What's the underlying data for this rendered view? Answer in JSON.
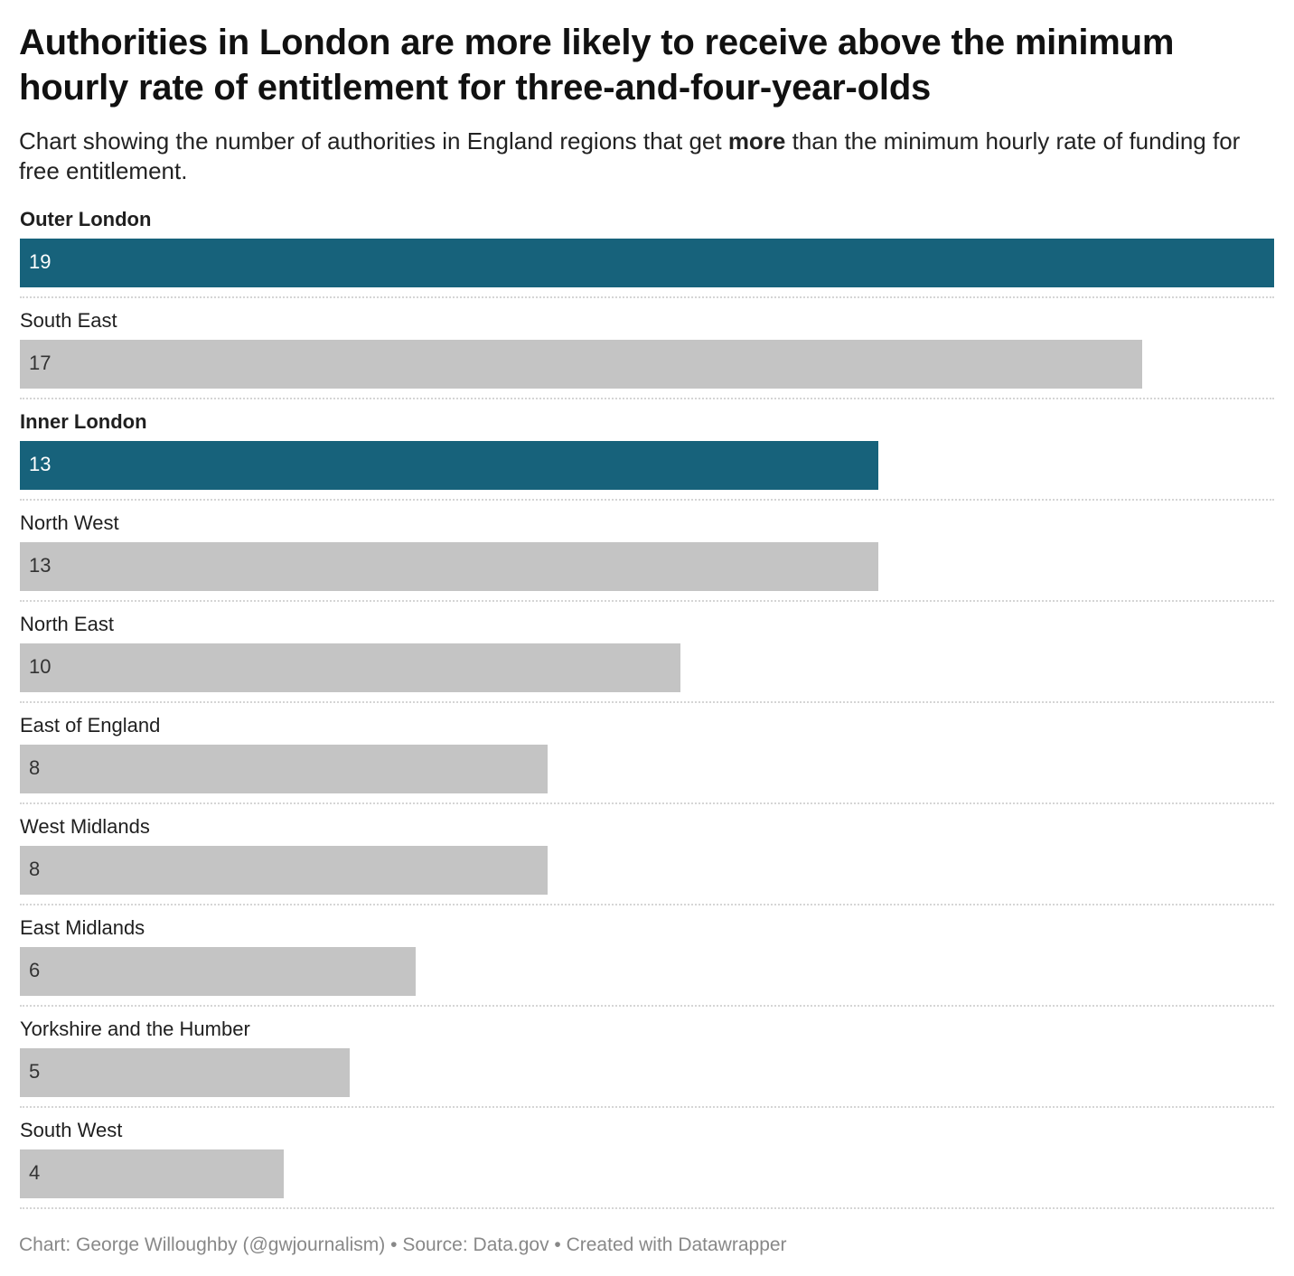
{
  "header": {
    "title": "Authorities in London are more likely to receive above the minimum hourly rate of entitlement for three-and-four-year-olds",
    "subtitle_before": "Chart showing the number of authorities in England regions that get ",
    "subtitle_bold": "more",
    "subtitle_after": " than the minimum hourly rate of funding for free entitlement."
  },
  "colors": {
    "highlight": "#17627b",
    "default": "#c4c4c4",
    "highlight_text": "#ffffff",
    "default_text": "#333333"
  },
  "chart_data": {
    "type": "bar",
    "orientation": "horizontal",
    "title": "Authorities in London are more likely to receive above the minimum hourly rate of entitlement for three-and-four-year-olds",
    "xlim": [
      0,
      19
    ],
    "grid": false,
    "legend": "none",
    "categories": [
      "Outer London",
      "South East",
      "Inner London",
      "North West",
      "North East",
      "East of England",
      "West Midlands",
      "East Midlands",
      "Yorkshire and the Humber",
      "South West"
    ],
    "values": [
      19,
      17,
      13,
      13,
      10,
      8,
      8,
      6,
      5,
      4
    ],
    "highlighted": [
      "Outer London",
      "Inner London"
    ]
  },
  "footer": {
    "credit": "Chart: George Willoughby (@gwjournalism) • Source: Data.gov • Created with Datawrapper"
  }
}
